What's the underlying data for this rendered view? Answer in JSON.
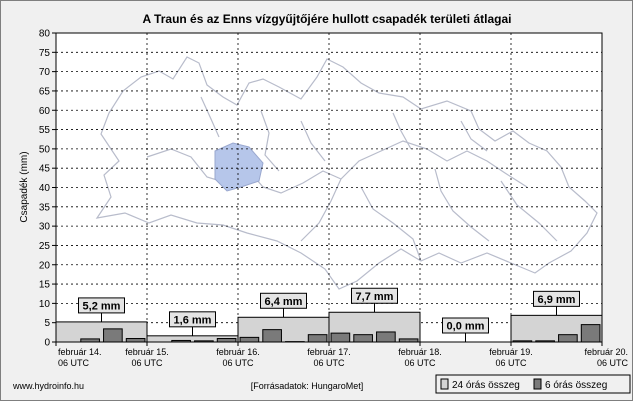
{
  "chart_data": {
    "type": "bar",
    "title": "A Traun és az Enns vízgyűjtőjére hullott csapadék területi átlagai",
    "ylabel": "Csapadék (mm)",
    "ylim": [
      0,
      80
    ],
    "yticks": [
      0,
      5,
      10,
      15,
      20,
      25,
      30,
      35,
      40,
      45,
      50,
      55,
      60,
      65,
      70,
      75,
      80
    ],
    "grid": true,
    "x_ticks": [
      {
        "line1": "február 14.",
        "line2": "06 UTC"
      },
      {
        "line1": "február 15.",
        "line2": "06 UTC"
      },
      {
        "line1": "február 16.",
        "line2": "06 UTC"
      },
      {
        "line1": "február 17.",
        "line2": "06 UTC"
      },
      {
        "line1": "február 18.",
        "line2": "06 UTC"
      },
      {
        "line1": "február 19.",
        "line2": "06 UTC"
      },
      {
        "line1": "február 20.",
        "line2": "06 UTC"
      }
    ],
    "series": [
      {
        "name": "24 órás összeg",
        "color": "#d4d4d4",
        "values": [
          5.2,
          1.6,
          6.4,
          7.7,
          0.0,
          6.9
        ],
        "labels": [
          "5,2 mm",
          "1,6 mm",
          "6,4 mm",
          "7,7 mm",
          "0,0 mm",
          "6,9 mm"
        ]
      },
      {
        "name": "6 órás összeg",
        "color": "#7a7a7a",
        "values": [
          0.0,
          0.8,
          3.4,
          0.9,
          0.0,
          0.4,
          0.3,
          0.9,
          1.2,
          3.2,
          0.1,
          1.9,
          2.3,
          1.9,
          2.6,
          0.8,
          0.0,
          0.0,
          0.0,
          0.0,
          0.3,
          0.3,
          1.9,
          4.5
        ]
      }
    ],
    "legend_position": "bottom-right"
  },
  "footer": {
    "left": "www.hydroinfo.hu",
    "center": "[Forrásadatok: HungaroMet]"
  }
}
